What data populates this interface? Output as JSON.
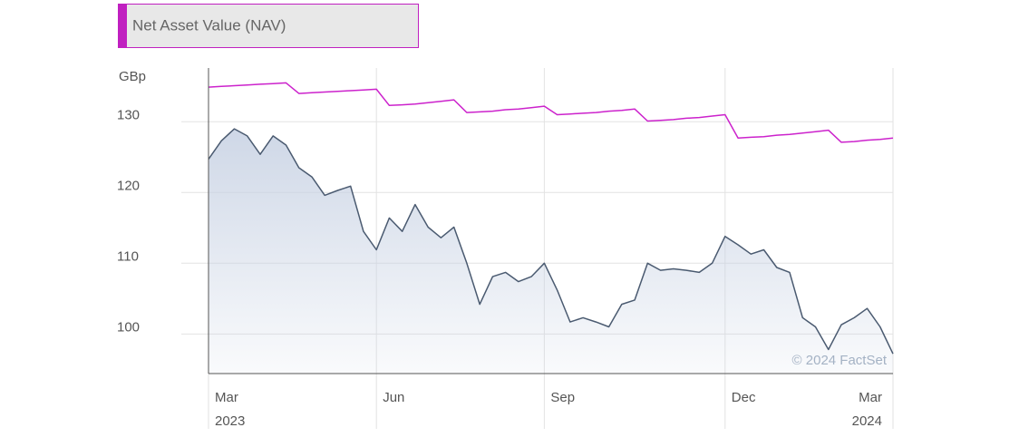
{
  "chart_data": {
    "type": "line",
    "title": "Net Asset Value (NAV)",
    "y_label": "GBp",
    "annotation": "© 2024 FactSet",
    "categories": [
      "Mar",
      null,
      null,
      null,
      null,
      null,
      null,
      null,
      null,
      null,
      null,
      null,
      null,
      "Jun",
      null,
      null,
      null,
      null,
      null,
      null,
      null,
      null,
      null,
      null,
      null,
      null,
      "Sep",
      null,
      null,
      null,
      null,
      null,
      null,
      null,
      null,
      null,
      null,
      null,
      null,
      null,
      "Dec",
      null,
      null,
      null,
      null,
      null,
      null,
      null,
      null,
      null,
      null,
      null,
      null,
      "Mar"
    ],
    "category_years": [
      "2023",
      null,
      null,
      null,
      null,
      null,
      null,
      null,
      null,
      null,
      null,
      null,
      null,
      null,
      null,
      null,
      null,
      null,
      null,
      null,
      null,
      null,
      null,
      null,
      null,
      null,
      null,
      null,
      null,
      null,
      null,
      null,
      null,
      null,
      null,
      null,
      null,
      null,
      null,
      null,
      null,
      null,
      null,
      null,
      null,
      null,
      null,
      null,
      null,
      null,
      null,
      null,
      null,
      "2024"
    ],
    "series": [
      {
        "color": "#cc22cc",
        "values": [
          134.9,
          135.0,
          135.1,
          135.2,
          135.3,
          135.4,
          135.5,
          134.0,
          134.1,
          134.2,
          134.3,
          134.4,
          134.5,
          134.6,
          132.3,
          132.4,
          132.5,
          132.7,
          132.9,
          133.1,
          131.3,
          131.4,
          131.5,
          131.7,
          131.8,
          132.0,
          132.2,
          131.0,
          131.1,
          131.2,
          131.3,
          131.5,
          131.6,
          131.8,
          130.1,
          130.2,
          130.3,
          130.5,
          130.6,
          130.8,
          131.0,
          127.7,
          127.8,
          127.9,
          128.1,
          128.2,
          128.4,
          128.6,
          128.8,
          127.1,
          127.2,
          127.4,
          127.5,
          127.7
        ]
      },
      {
        "color": "#4a5a70",
        "fill": "#c9d3e4",
        "values": [
          124.7,
          127.3,
          129.0,
          128.0,
          125.4,
          128.0,
          126.7,
          123.5,
          122.2,
          119.6,
          120.3,
          120.9,
          114.5,
          111.9,
          116.4,
          114.5,
          118.3,
          115.1,
          113.6,
          115.1,
          110.0,
          104.2,
          108.1,
          108.7,
          107.4,
          108.1,
          110.0,
          106.2,
          101.7,
          102.3,
          101.7,
          101.0,
          104.2,
          104.8,
          110.0,
          109.0,
          109.2,
          109.0,
          108.7,
          110.0,
          113.8,
          112.6,
          111.3,
          111.9,
          109.4,
          108.7,
          102.3,
          101.0,
          97.8,
          101.3,
          102.3,
          103.6,
          101.0,
          97.2
        ]
      }
    ],
    "ylim": [
      94.4,
      137.6
    ],
    "yticks": [
      100,
      110,
      120,
      130
    ],
    "grid": true
  }
}
